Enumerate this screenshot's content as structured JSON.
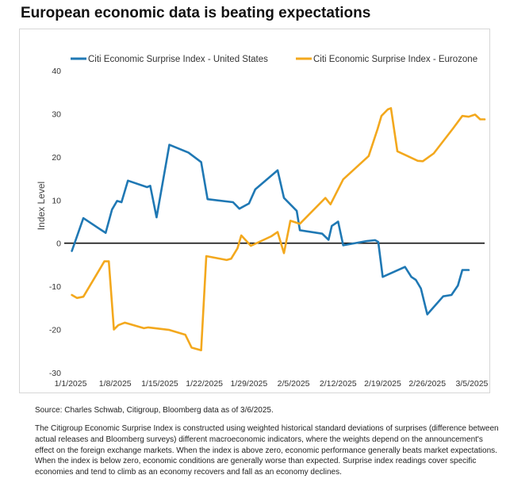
{
  "title": "European economic data is beating expectations",
  "source": "Source: Charles Schwab, Citigroup, Bloomberg data as of 3/6/2025.",
  "note": "The Citigroup Economic Surprise Index is constructed using weighted historical standard deviations of surprises (difference between actual releases and Bloomberg surveys) different macroeconomic indicators, where the weights depend on the announcement's effect on the foreign exchange markets. When the index is above zero, economic performance generally beats market expectations. When the index is below zero, economic conditions are generally worse than expected. Surprise index readings cover specific economies and tend to climb as an economy recovers and fall as an economy declines.",
  "chart_data": {
    "type": "line",
    "ylabel": "Index Level",
    "xlabel": "",
    "ylim": [
      -30,
      40
    ],
    "yticks": [
      -30,
      -20,
      -10,
      0,
      10,
      20,
      30,
      40
    ],
    "xlim": [
      0,
      65
    ],
    "xticks": [
      {
        "x": 0,
        "label": "1/1/2025"
      },
      {
        "x": 7,
        "label": "1/8/2025"
      },
      {
        "x": 14,
        "label": "1/15/2025"
      },
      {
        "x": 21,
        "label": "1/22/2025"
      },
      {
        "x": 28,
        "label": "1/29/2025"
      },
      {
        "x": 35,
        "label": "2/5/2025"
      },
      {
        "x": 42,
        "label": "2/12/2025"
      },
      {
        "x": 49,
        "label": "2/19/2025"
      },
      {
        "x": 56,
        "label": "2/26/2025"
      },
      {
        "x": 63,
        "label": "3/5/2025"
      }
    ],
    "grid": false,
    "zero_line": true,
    "legend_position": "top",
    "series": [
      {
        "name": "Citi Economic Surprise Index - United States",
        "color": "#1f78b4",
        "points": [
          [
            0.2,
            -1.8
          ],
          [
            2.0,
            5.8
          ],
          [
            5.5,
            2.4
          ],
          [
            6.5,
            7.8
          ],
          [
            7.3,
            9.8
          ],
          [
            8.0,
            9.5
          ],
          [
            9.0,
            14.5
          ],
          [
            12.0,
            13.0
          ],
          [
            12.5,
            13.3
          ],
          [
            13.5,
            6.0
          ],
          [
            15.5,
            22.8
          ],
          [
            18.5,
            21.0
          ],
          [
            20.5,
            18.8
          ],
          [
            21.5,
            10.2
          ],
          [
            25.5,
            9.5
          ],
          [
            26.5,
            8.0
          ],
          [
            28.0,
            9.2
          ],
          [
            29.0,
            12.5
          ],
          [
            32.5,
            16.9
          ],
          [
            33.5,
            10.5
          ],
          [
            35.5,
            7.5
          ],
          [
            36.0,
            3.0
          ],
          [
            39.5,
            2.2
          ],
          [
            40.5,
            0.8
          ],
          [
            41.0,
            4.0
          ],
          [
            42.0,
            5.0
          ],
          [
            42.8,
            -0.5
          ],
          [
            46.5,
            0.5
          ],
          [
            47.8,
            0.7
          ],
          [
            48.3,
            0.3
          ],
          [
            49.0,
            -7.8
          ],
          [
            52.5,
            -5.5
          ],
          [
            53.5,
            -7.8
          ],
          [
            54.2,
            -8.5
          ],
          [
            55.0,
            -10.5
          ],
          [
            56.0,
            -16.5
          ],
          [
            58.5,
            -12.3
          ],
          [
            59.8,
            -12.0
          ],
          [
            60.8,
            -9.8
          ],
          [
            61.5,
            -6.2
          ],
          [
            62.5,
            -6.2
          ]
        ]
      },
      {
        "name": "Citi Economic Surprise Index - Eurozone",
        "color": "#f3a81d",
        "points": [
          [
            0.2,
            -12.0
          ],
          [
            1.0,
            -12.7
          ],
          [
            2.0,
            -12.4
          ],
          [
            5.3,
            -4.2
          ],
          [
            6.0,
            -4.2
          ],
          [
            6.8,
            -20.0
          ],
          [
            7.5,
            -19.0
          ],
          [
            8.5,
            -18.4
          ],
          [
            11.5,
            -19.7
          ],
          [
            12.2,
            -19.5
          ],
          [
            15.5,
            -20.1
          ],
          [
            18.0,
            -21.2
          ],
          [
            19.0,
            -24.2
          ],
          [
            20.5,
            -24.8
          ],
          [
            21.3,
            -3.0
          ],
          [
            24.5,
            -3.9
          ],
          [
            25.2,
            -3.6
          ],
          [
            26.2,
            -1.2
          ],
          [
            26.8,
            1.8
          ],
          [
            28.3,
            -0.6
          ],
          [
            31.5,
            1.6
          ],
          [
            32.5,
            2.6
          ],
          [
            33.5,
            -2.3
          ],
          [
            34.5,
            5.2
          ],
          [
            36.0,
            4.5
          ],
          [
            40.0,
            10.5
          ],
          [
            40.8,
            9.0
          ],
          [
            42.8,
            14.8
          ],
          [
            46.8,
            20.2
          ],
          [
            48.2,
            26.5
          ],
          [
            48.8,
            29.5
          ],
          [
            49.8,
            31.0
          ],
          [
            50.3,
            31.3
          ],
          [
            51.3,
            21.3
          ],
          [
            54.5,
            19.1
          ],
          [
            55.3,
            19.0
          ],
          [
            57.0,
            20.8
          ],
          [
            60.0,
            26.5
          ],
          [
            61.5,
            29.5
          ],
          [
            62.5,
            29.3
          ],
          [
            63.5,
            29.8
          ],
          [
            64.3,
            28.7
          ],
          [
            65.0,
            28.7
          ]
        ]
      }
    ]
  }
}
